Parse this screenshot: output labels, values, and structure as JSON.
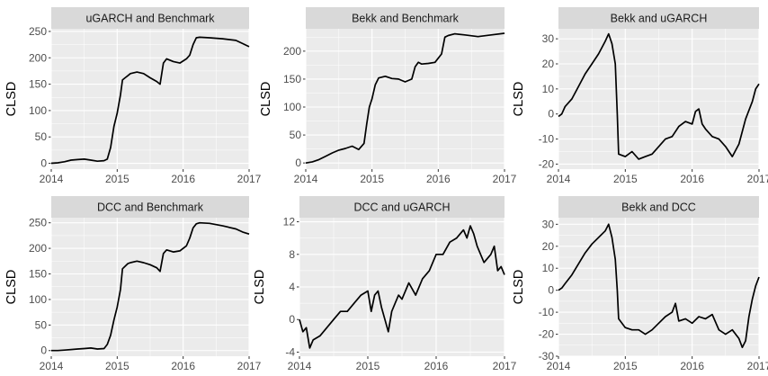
{
  "colors": {
    "panel_bg": "#EBEBEB",
    "strip_bg": "#D9D9D9",
    "grid_major": "#FFFFFF",
    "line": "#000000",
    "tick_text": "#4D4D4D"
  },
  "chart_data": [
    {
      "type": "line",
      "title": "uGARCH and Benchmark",
      "ylabel": "CLSD",
      "xlim": [
        2014,
        2017
      ],
      "ylim": [
        -11,
        255
      ],
      "xticks": [
        2014,
        2015,
        2016,
        2017
      ],
      "yticks": [
        0,
        50,
        100,
        150,
        200,
        250
      ],
      "grid": true,
      "x": [
        2014.0,
        2014.1,
        2014.2,
        2014.3,
        2014.4,
        2014.5,
        2014.6,
        2014.7,
        2014.8,
        2014.85,
        2014.9,
        2014.95,
        2015.0,
        2015.05,
        2015.08,
        2015.12,
        2015.16,
        2015.2,
        2015.3,
        2015.4,
        2015.5,
        2015.6,
        2015.65,
        2015.7,
        2015.75,
        2015.85,
        2015.95,
        2016.05,
        2016.1,
        2016.15,
        2016.2,
        2016.25,
        2016.4,
        2016.6,
        2016.8,
        2016.9,
        2017.0
      ],
      "values": [
        0,
        1,
        3,
        6,
        7,
        8,
        6,
        4,
        5,
        8,
        30,
        70,
        95,
        130,
        158,
        162,
        166,
        170,
        173,
        170,
        162,
        155,
        150,
        190,
        198,
        193,
        190,
        198,
        205,
        225,
        238,
        239,
        238,
        236,
        233,
        227,
        221
      ]
    },
    {
      "type": "line",
      "title": "Bekk and Benchmark",
      "ylabel": "CLSD",
      "xlim": [
        2014,
        2017
      ],
      "ylim": [
        -11,
        240
      ],
      "xticks": [
        2014,
        2015,
        2016,
        2017
      ],
      "yticks": [
        0,
        50,
        100,
        150,
        200
      ],
      "grid": true,
      "x": [
        2014.0,
        2014.1,
        2014.2,
        2014.3,
        2014.4,
        2014.5,
        2014.6,
        2014.7,
        2014.8,
        2014.88,
        2014.92,
        2014.96,
        2015.0,
        2015.05,
        2015.1,
        2015.2,
        2015.3,
        2015.4,
        2015.5,
        2015.6,
        2015.65,
        2015.7,
        2015.75,
        2015.85,
        2015.95,
        2016.05,
        2016.1,
        2016.15,
        2016.25,
        2016.4,
        2016.6,
        2016.8,
        2017.0
      ],
      "values": [
        0,
        2,
        6,
        12,
        18,
        23,
        26,
        30,
        24,
        35,
        70,
        100,
        115,
        140,
        152,
        155,
        151,
        150,
        145,
        150,
        172,
        180,
        177,
        178,
        180,
        195,
        225,
        228,
        231,
        229,
        226,
        229,
        232
      ]
    },
    {
      "type": "line",
      "title": "Bekk and uGARCH",
      "ylabel": "CLSD",
      "xlim": [
        2014,
        2017
      ],
      "ylim": [
        -22,
        34
      ],
      "xticks": [
        2014,
        2015,
        2016,
        2017
      ],
      "yticks": [
        -20,
        -10,
        0,
        10,
        20,
        30
      ],
      "grid": true,
      "x": [
        2014.0,
        2014.05,
        2014.1,
        2014.2,
        2014.3,
        2014.4,
        2014.5,
        2014.6,
        2014.7,
        2014.75,
        2014.8,
        2014.85,
        2014.88,
        2014.9,
        2015.0,
        2015.1,
        2015.2,
        2015.3,
        2015.4,
        2015.5,
        2015.6,
        2015.7,
        2015.8,
        2015.9,
        2016.0,
        2016.05,
        2016.1,
        2016.15,
        2016.2,
        2016.3,
        2016.4,
        2016.5,
        2016.6,
        2016.7,
        2016.8,
        2016.9,
        2016.95,
        2017.0
      ],
      "values": [
        -1,
        0,
        3,
        6,
        11,
        16,
        20,
        24,
        29,
        32,
        28,
        20,
        0,
        -16,
        -17,
        -15,
        -18,
        -17,
        -16,
        -13,
        -10,
        -9,
        -5,
        -3,
        -4,
        1,
        2,
        -4,
        -6,
        -9,
        -10,
        -13,
        -17,
        -12,
        -2,
        5,
        10,
        12
      ]
    },
    {
      "type": "line",
      "title": "DCC and Benchmark",
      "ylabel": "CLSD",
      "xlim": [
        2014,
        2017
      ],
      "ylim": [
        -11,
        260
      ],
      "xticks": [
        2014,
        2015,
        2016,
        2017
      ],
      "yticks": [
        0,
        50,
        100,
        150,
        200,
        250
      ],
      "grid": true,
      "x": [
        2014.0,
        2014.1,
        2014.2,
        2014.3,
        2014.4,
        2014.5,
        2014.6,
        2014.7,
        2014.8,
        2014.85,
        2014.9,
        2014.95,
        2015.0,
        2015.05,
        2015.08,
        2015.12,
        2015.16,
        2015.2,
        2015.3,
        2015.4,
        2015.5,
        2015.6,
        2015.65,
        2015.7,
        2015.75,
        2015.85,
        2015.95,
        2016.05,
        2016.1,
        2016.15,
        2016.2,
        2016.25,
        2016.4,
        2016.6,
        2016.8,
        2016.9,
        2017.0
      ],
      "values": [
        0,
        0,
        1,
        2,
        3,
        4,
        5,
        3,
        4,
        12,
        30,
        60,
        85,
        120,
        160,
        165,
        170,
        172,
        175,
        172,
        168,
        162,
        155,
        190,
        197,
        193,
        195,
        205,
        220,
        240,
        248,
        250,
        249,
        244,
        238,
        232,
        228
      ]
    },
    {
      "type": "line",
      "title": "DCC and uGARCH",
      "ylabel": "CLSD",
      "xlim": [
        2014,
        2017
      ],
      "ylim": [
        -4.5,
        12.5
      ],
      "xticks": [
        2014,
        2015,
        2016,
        2017
      ],
      "yticks": [
        -4,
        0,
        4,
        8,
        12
      ],
      "grid": true,
      "x": [
        2014.0,
        2014.05,
        2014.1,
        2014.15,
        2014.2,
        2014.3,
        2014.4,
        2014.5,
        2014.6,
        2014.7,
        2014.8,
        2014.9,
        2015.0,
        2015.05,
        2015.1,
        2015.15,
        2015.2,
        2015.25,
        2015.3,
        2015.35,
        2015.4,
        2015.45,
        2015.5,
        2015.6,
        2015.7,
        2015.8,
        2015.9,
        2016.0,
        2016.1,
        2016.2,
        2016.3,
        2016.4,
        2016.45,
        2016.5,
        2016.55,
        2016.6,
        2016.7,
        2016.8,
        2016.85,
        2016.9,
        2016.95,
        2017.0
      ],
      "values": [
        0,
        -1.5,
        -1,
        -3.5,
        -2.5,
        -2,
        -1,
        0,
        1,
        1,
        2,
        3,
        3.5,
        1,
        3,
        3.5,
        1.5,
        0,
        -1.5,
        1,
        2,
        3,
        2.5,
        4.5,
        3,
        5,
        6,
        8,
        8,
        9.5,
        10,
        11,
        10,
        11.5,
        10.5,
        9,
        7,
        8,
        9,
        6,
        6.5,
        5.5
      ]
    },
    {
      "type": "line",
      "title": "Bekk and DCC",
      "ylabel": "CLSD",
      "xlim": [
        2014,
        2017
      ],
      "ylim": [
        -30,
        33
      ],
      "xticks": [
        2014,
        2015,
        2016,
        2017
      ],
      "yticks": [
        -30,
        -20,
        -10,
        0,
        10,
        20,
        30
      ],
      "grid": true,
      "x": [
        2014.0,
        2014.05,
        2014.1,
        2014.2,
        2014.3,
        2014.4,
        2014.5,
        2014.6,
        2014.7,
        2014.75,
        2014.8,
        2014.85,
        2014.88,
        2014.9,
        2015.0,
        2015.1,
        2015.2,
        2015.3,
        2015.4,
        2015.5,
        2015.6,
        2015.7,
        2015.75,
        2015.8,
        2015.9,
        2016.0,
        2016.1,
        2016.2,
        2016.3,
        2016.4,
        2016.5,
        2016.6,
        2016.7,
        2016.75,
        2016.8,
        2016.85,
        2016.9,
        2016.95,
        2017.0
      ],
      "values": [
        0,
        1,
        3,
        7,
        12,
        17,
        21,
        24,
        27,
        30,
        24,
        14,
        0,
        -13,
        -17,
        -18,
        -18,
        -20,
        -18,
        -15,
        -12,
        -10,
        -6,
        -14,
        -13,
        -15,
        -12,
        -13,
        -11,
        -18,
        -20,
        -18,
        -22,
        -26,
        -23,
        -12,
        -4,
        2,
        6
      ]
    }
  ]
}
